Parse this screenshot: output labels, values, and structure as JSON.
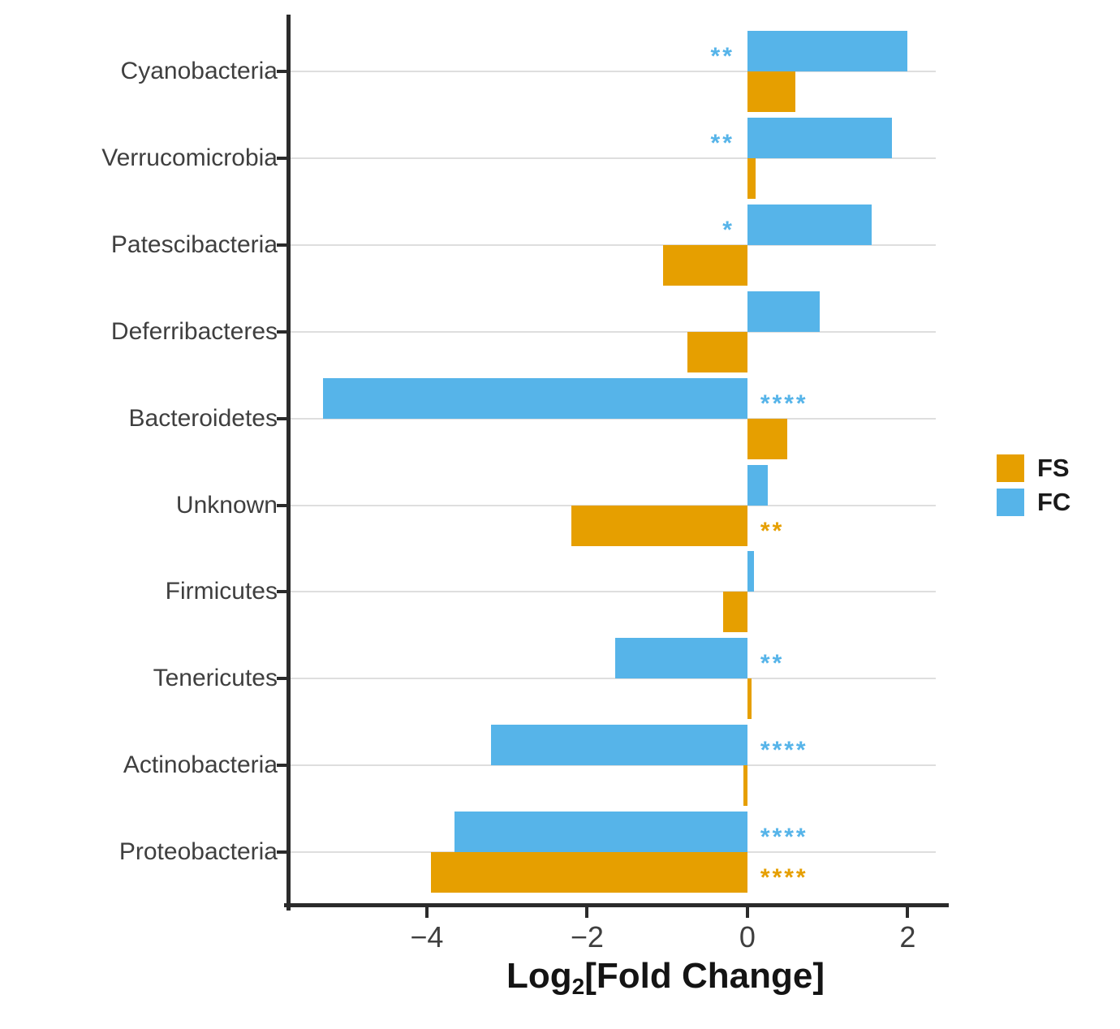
{
  "chart_data": {
    "type": "bar",
    "orientation": "horizontal",
    "title": "",
    "xlabel": {
      "pre": "Log",
      "sub": "2",
      "post": "[Fold Change]"
    },
    "xlim": [
      -5.7,
      2.35
    ],
    "grid": true,
    "xticks": [
      {
        "value": -4,
        "label": "−4"
      },
      {
        "value": -2,
        "label": "−2"
      },
      {
        "value": 0,
        "label": "0"
      },
      {
        "value": 2,
        "label": "2"
      }
    ],
    "categories": [
      "Cyanobacteria",
      "Verrucomicrobia",
      "Patescibacteria",
      "Deferribacteres",
      "Bacteroidetes",
      "Unknown",
      "Firmicutes",
      "Tenericutes",
      "Actinobacteria",
      "Proteobacteria"
    ],
    "series": [
      {
        "name": "FC",
        "color": "#56B4E9",
        "values": [
          2.0,
          1.8,
          1.55,
          0.9,
          -5.3,
          0.25,
          0.08,
          -1.65,
          -3.2,
          -3.65
        ],
        "significance": [
          "**",
          "**",
          "*",
          "",
          "****",
          "",
          "",
          "**",
          "****",
          "****"
        ]
      },
      {
        "name": "FS",
        "color": "#E69F00",
        "values": [
          0.6,
          0.1,
          -1.05,
          -0.75,
          0.5,
          -2.2,
          -0.3,
          0.05,
          -0.05,
          -3.95
        ],
        "significance": [
          "",
          "",
          "",
          "",
          "",
          "**",
          "",
          "",
          "",
          "****"
        ]
      }
    ],
    "legend": {
      "position": "right",
      "items": [
        {
          "label": "FS",
          "color": "#E69F00"
        },
        {
          "label": "FC",
          "color": "#56B4E9"
        }
      ]
    },
    "styles": {
      "grid_color": "#dedede",
      "axis_color": "#2b2b2b",
      "category_label_color": "#3f3f3f",
      "tick_label_color": "#3f3f3f",
      "background": "#ffffff"
    }
  }
}
